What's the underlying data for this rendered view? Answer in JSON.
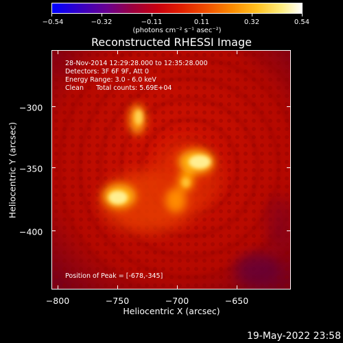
{
  "colorbar": {
    "tick_labels": [
      "−0.54",
      "−0.32",
      "−0.11",
      "0.11",
      "0.32",
      "0.54"
    ],
    "units": "(photons cm⁻² s⁻¹ asec⁻²)"
  },
  "plot": {
    "title": "Reconstructed RHESSI Image",
    "info_lines": [
      "28-Nov-2014 12:29:28.000 to 12:35:28.000",
      "Detectors: 3F 6F 9F, Att 0",
      "Energy Range: 3.0 - 6.0 keV",
      "Clean      Total counts: 5.69E+04"
    ],
    "peak_label": "Position of Peak = [-678,-345]",
    "xlabel": "Heliocentric X (arcsec)",
    "ylabel": "Heliocentric Y (arcsec)",
    "xtick_labels": [
      "−800",
      "−750",
      "−700",
      "−650"
    ],
    "ytick_labels": [
      "−300",
      "−350",
      "−400"
    ]
  },
  "footer": {
    "datestamp": "19-May-2022 23:58"
  },
  "colors": {
    "background": "#000000",
    "map_base": "#c40a00",
    "peak": "#fff2a0"
  }
}
